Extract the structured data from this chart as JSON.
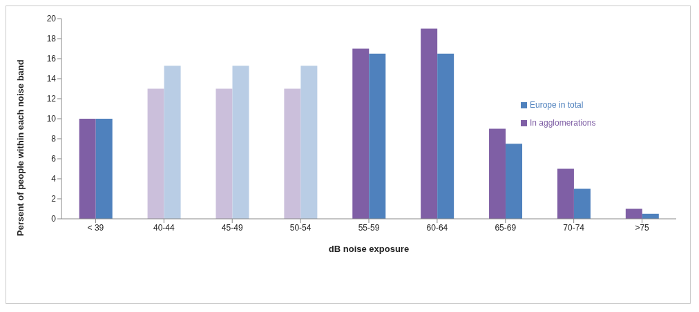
{
  "chart_data": {
    "type": "bar",
    "xlabel": "dB noise exposure",
    "ylabel": "Persent of people within each noise band",
    "categories": [
      "< 39",
      "40-44",
      "45-49",
      "50-54",
      "55-59",
      "60-64",
      "65-69",
      "70-74",
      ">75"
    ],
    "series": [
      {
        "name": "In agglomerations",
        "color": "#7f5fa5",
        "colors": [
          "#7f5fa5",
          "#cbbfdb",
          "#cbbfdb",
          "#cbbfdb",
          "#7f5fa5",
          "#7f5fa5",
          "#7f5fa5",
          "#7f5fa5",
          "#7f5fa5"
        ],
        "values": [
          10,
          13,
          13,
          13,
          17,
          19,
          9,
          5,
          1
        ]
      },
      {
        "name": "Europe in total",
        "color": "#4f81bd",
        "colors": [
          "#4f81bd",
          "#b9cde5",
          "#b9cde5",
          "#b9cde5",
          "#4f81bd",
          "#4f81bd",
          "#4f81bd",
          "#4f81bd",
          "#4f81bd"
        ],
        "values": [
          10,
          15.3,
          15.3,
          15.3,
          16.5,
          16.5,
          7.5,
          3,
          0.5
        ]
      }
    ],
    "ylim": [
      0,
      20
    ],
    "yticks": [
      0,
      2,
      4,
      6,
      8,
      10,
      12,
      14,
      16,
      18,
      20
    ],
    "grid": false,
    "legend": "right"
  }
}
